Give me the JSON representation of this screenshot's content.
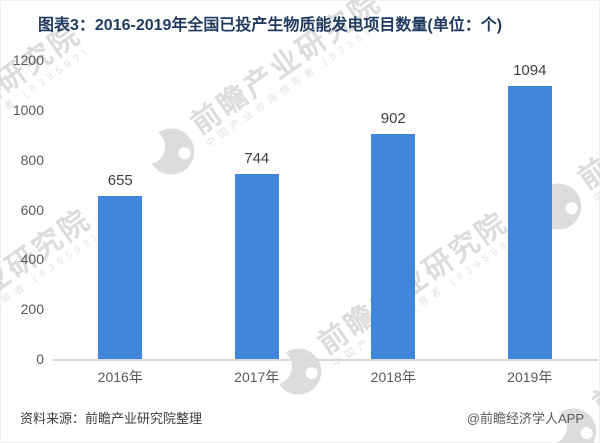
{
  "title": "图表3：2016-2019年全国已投产生物质能发电项目数量(单位：个)",
  "chart_data": {
    "type": "bar",
    "categories": [
      "2016年",
      "2017年",
      "2018年",
      "2019年"
    ],
    "values": [
      655,
      744,
      902,
      1094
    ],
    "title": "图表3：2016-2019年全国已投产生物质能发电项目数量(单位：个)",
    "xlabel": "",
    "ylabel": "",
    "ylim": [
      0,
      1200
    ],
    "yticks": [
      0,
      200,
      400,
      600,
      800,
      1000,
      1200
    ],
    "grid": false,
    "legend": "none",
    "value_labels_shown": true,
    "bar_color": "#4285DC"
  },
  "footer": {
    "source": "资料来源：前瞻产业研究院整理",
    "credit": "@前瞻经济学人APP"
  },
  "watermark": {
    "brand": "前瞻产业研究院",
    "tagline": "中国产业咨询领导者 (839599)"
  },
  "colors": {
    "title_text": "#1F3A5F",
    "bar_fill": "#4285DC",
    "axis_label": "#595959",
    "value_label": "#3F3F3F",
    "axis_line": "#D9D9D9",
    "watermark_gray": "#D6D6D6"
  }
}
